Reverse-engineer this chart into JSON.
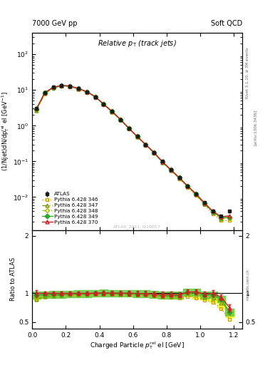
{
  "title_left": "7000 GeV pp",
  "title_right": "Soft QCD",
  "main_title": "Relative p$_\\mathrm{T}$ (track jets)",
  "xlabel": "Charged Particle $p^\\mathrm{rel}_\\mathrm{T}$ el [GeV]",
  "ylabel_main": "(1/Njet)dN/dp$^\\mathrm{rel}_\\mathrm{T}$ el [GeV$^{-1}$]",
  "ylabel_ratio": "Ratio to ATLAS",
  "right_label_top": "Rivet 3.1.10, ≥ 3M events",
  "right_label_mid": "[arXiv:1306.3436]",
  "right_label_bot": "mcplots.cern.ch",
  "watermark": "ATLAS_2011_I919017",
  "x_data": [
    0.025,
    0.075,
    0.125,
    0.175,
    0.225,
    0.275,
    0.325,
    0.375,
    0.425,
    0.475,
    0.525,
    0.575,
    0.625,
    0.675,
    0.725,
    0.775,
    0.825,
    0.875,
    0.925,
    0.975,
    1.025,
    1.075,
    1.125,
    1.175
  ],
  "x_edges": [
    0.0,
    0.05,
    0.1,
    0.15,
    0.2,
    0.25,
    0.3,
    0.35,
    0.4,
    0.45,
    0.5,
    0.55,
    0.6,
    0.65,
    0.7,
    0.75,
    0.8,
    0.85,
    0.9,
    0.95,
    1.0,
    1.05,
    1.1,
    1.15,
    1.2
  ],
  "atlas_y": [
    3.0,
    8.5,
    12.0,
    13.5,
    13.0,
    11.0,
    9.0,
    6.5,
    4.0,
    2.5,
    1.5,
    0.85,
    0.5,
    0.3,
    0.18,
    0.1,
    0.06,
    0.036,
    0.02,
    0.012,
    0.007,
    0.004,
    0.003,
    0.004
  ],
  "atlas_yerr": [
    0.3,
    0.5,
    0.6,
    0.7,
    0.65,
    0.6,
    0.5,
    0.4,
    0.3,
    0.2,
    0.12,
    0.07,
    0.04,
    0.025,
    0.015,
    0.009,
    0.005,
    0.003,
    0.0015,
    0.001,
    0.0006,
    0.0004,
    0.0003,
    0.0005
  ],
  "p346_y": [
    2.7,
    8.0,
    11.5,
    13.0,
    12.6,
    10.7,
    8.8,
    6.4,
    3.95,
    2.45,
    1.47,
    0.83,
    0.485,
    0.29,
    0.172,
    0.094,
    0.056,
    0.033,
    0.019,
    0.011,
    0.0062,
    0.0034,
    0.0022,
    0.0022
  ],
  "p347_y": [
    2.7,
    8.0,
    11.5,
    13.1,
    12.7,
    10.8,
    8.85,
    6.45,
    3.98,
    2.47,
    1.48,
    0.84,
    0.49,
    0.293,
    0.174,
    0.095,
    0.057,
    0.034,
    0.02,
    0.012,
    0.0065,
    0.0037,
    0.0025,
    0.0028
  ],
  "p348_y": [
    2.8,
    8.2,
    11.7,
    13.2,
    12.8,
    10.85,
    8.9,
    6.48,
    4.0,
    2.49,
    1.49,
    0.845,
    0.495,
    0.296,
    0.176,
    0.096,
    0.058,
    0.0345,
    0.0202,
    0.0121,
    0.0067,
    0.0038,
    0.0026,
    0.0026
  ],
  "p349_y": [
    2.9,
    8.3,
    11.8,
    13.3,
    12.85,
    10.9,
    8.95,
    6.5,
    4.02,
    2.5,
    1.5,
    0.85,
    0.498,
    0.298,
    0.177,
    0.097,
    0.058,
    0.0348,
    0.0204,
    0.0122,
    0.0068,
    0.0039,
    0.0027,
    0.0027
  ],
  "p370_y": [
    3.0,
    8.5,
    12.0,
    13.5,
    13.0,
    11.0,
    9.0,
    6.52,
    4.03,
    2.51,
    1.505,
    0.852,
    0.499,
    0.299,
    0.178,
    0.098,
    0.059,
    0.035,
    0.0205,
    0.0123,
    0.0069,
    0.004,
    0.0028,
    0.003
  ],
  "color_atlas": "#1a1a1a",
  "color_346": "#c8a000",
  "color_347": "#7a9a00",
  "color_348": "#a0c000",
  "color_349": "#30a830",
  "color_370": "#cc2020",
  "band_yellow": "#ffff44",
  "band_green": "#66cc44",
  "ylim_main": [
    0.0012,
    400
  ],
  "ylim_ratio": [
    0.39,
    2.1
  ],
  "xlim": [
    0.0,
    1.25
  ],
  "ratio_yticks": [
    0.5,
    1.0,
    2.0
  ],
  "ratio_ytick_labels": [
    "0.5",
    "1",
    "2"
  ]
}
